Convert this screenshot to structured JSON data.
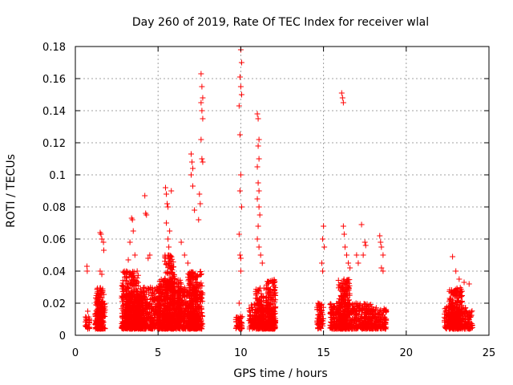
{
  "chart_data": {
    "type": "scatter",
    "title": "Day 260 of 2019, Rate Of TEC Index for receiver wlal",
    "xlabel": "GPS time / hours",
    "ylabel": "ROTI / TECUs",
    "xlim": [
      0,
      25
    ],
    "ylim": [
      0,
      0.18
    ],
    "xticks": [
      0,
      5,
      10,
      15,
      20,
      25
    ],
    "xtick_labels": [
      "0",
      "5",
      "10",
      "15",
      "20",
      "25"
    ],
    "yticks": [
      0,
      0.02,
      0.04,
      0.06,
      0.08,
      0.1,
      0.12,
      0.14,
      0.16,
      0.18
    ],
    "ytick_labels": [
      "0",
      "0.02",
      "0.04",
      "0.06",
      "0.08",
      "0.1",
      "0.12",
      "0.14",
      "0.16",
      "0.18"
    ],
    "grid": true,
    "marker": "+",
    "marker_color": "#ff0000",
    "series": [
      {
        "name": "ROTI",
        "note": "dense clusters of samples; the script generates many points inside each cluster band plus listed outliers",
        "clusters": [
          {
            "x0": 0.6,
            "x1": 0.85,
            "ymax": 0.012
          },
          {
            "x0": 1.2,
            "x1": 1.75,
            "ymax": 0.03
          },
          {
            "x0": 1.3,
            "x1": 1.8,
            "ymax": 0.022
          },
          {
            "x0": 2.8,
            "x1": 3.8,
            "ymax": 0.04
          },
          {
            "x0": 3.0,
            "x1": 4.2,
            "ymax": 0.025
          },
          {
            "x0": 3.8,
            "x1": 5.2,
            "ymax": 0.03
          },
          {
            "x0": 5.0,
            "x1": 6.4,
            "ymax": 0.035
          },
          {
            "x0": 5.4,
            "x1": 6.0,
            "ymax": 0.05
          },
          {
            "x0": 6.2,
            "x1": 7.4,
            "ymax": 0.03
          },
          {
            "x0": 6.8,
            "x1": 7.7,
            "ymax": 0.04
          },
          {
            "x0": 9.7,
            "x1": 10.1,
            "ymax": 0.012
          },
          {
            "x0": 10.5,
            "x1": 12.1,
            "ymax": 0.02
          },
          {
            "x0": 10.9,
            "x1": 11.4,
            "ymax": 0.03
          },
          {
            "x0": 11.5,
            "x1": 12.1,
            "ymax": 0.035
          },
          {
            "x0": 14.6,
            "x1": 15.0,
            "ymax": 0.02
          },
          {
            "x0": 15.4,
            "x1": 17.0,
            "ymax": 0.02
          },
          {
            "x0": 15.9,
            "x1": 16.6,
            "ymax": 0.035
          },
          {
            "x0": 17.0,
            "x1": 18.0,
            "ymax": 0.02
          },
          {
            "x0": 17.9,
            "x1": 18.8,
            "ymax": 0.018
          },
          {
            "x0": 22.3,
            "x1": 24.0,
            "ymax": 0.018
          },
          {
            "x0": 22.6,
            "x1": 23.4,
            "ymax": 0.03
          }
        ],
        "outliers": [
          [
            0.7,
            0.043
          ],
          [
            0.72,
            0.04
          ],
          [
            0.75,
            0.015
          ],
          [
            1.5,
            0.064
          ],
          [
            1.55,
            0.063
          ],
          [
            1.6,
            0.06
          ],
          [
            1.7,
            0.058
          ],
          [
            1.72,
            0.053
          ],
          [
            1.5,
            0.04
          ],
          [
            1.6,
            0.038
          ],
          [
            3.4,
            0.073
          ],
          [
            3.45,
            0.072
          ],
          [
            3.5,
            0.065
          ],
          [
            3.3,
            0.058
          ],
          [
            3.6,
            0.05
          ],
          [
            3.2,
            0.047
          ],
          [
            4.2,
            0.087
          ],
          [
            4.25,
            0.076
          ],
          [
            4.3,
            0.075
          ],
          [
            4.5,
            0.05
          ],
          [
            4.4,
            0.048
          ],
          [
            5.45,
            0.092
          ],
          [
            5.5,
            0.088
          ],
          [
            5.55,
            0.082
          ],
          [
            5.6,
            0.08
          ],
          [
            5.5,
            0.07
          ],
          [
            5.7,
            0.065
          ],
          [
            5.6,
            0.06
          ],
          [
            5.65,
            0.055
          ],
          [
            5.8,
            0.09
          ],
          [
            6.4,
            0.058
          ],
          [
            6.6,
            0.05
          ],
          [
            6.8,
            0.045
          ],
          [
            7.0,
            0.113
          ],
          [
            7.05,
            0.108
          ],
          [
            7.1,
            0.104
          ],
          [
            7.0,
            0.1
          ],
          [
            7.1,
            0.093
          ],
          [
            7.2,
            0.078
          ],
          [
            7.6,
            0.163
          ],
          [
            7.65,
            0.155
          ],
          [
            7.7,
            0.148
          ],
          [
            7.6,
            0.145
          ],
          [
            7.65,
            0.14
          ],
          [
            7.7,
            0.135
          ],
          [
            7.6,
            0.122
          ],
          [
            7.65,
            0.11
          ],
          [
            7.7,
            0.108
          ],
          [
            7.5,
            0.088
          ],
          [
            7.55,
            0.082
          ],
          [
            7.45,
            0.072
          ],
          [
            10.0,
            0.178
          ],
          [
            10.05,
            0.17
          ],
          [
            9.95,
            0.161
          ],
          [
            10.0,
            0.155
          ],
          [
            10.05,
            0.15
          ],
          [
            9.9,
            0.143
          ],
          [
            9.95,
            0.125
          ],
          [
            10.0,
            0.1
          ],
          [
            9.95,
            0.09
          ],
          [
            10.05,
            0.08
          ],
          [
            9.9,
            0.063
          ],
          [
            9.95,
            0.05
          ],
          [
            10.0,
            0.048
          ],
          [
            10.0,
            0.04
          ],
          [
            9.9,
            0.02
          ],
          [
            11.0,
            0.138
          ],
          [
            11.05,
            0.135
          ],
          [
            11.1,
            0.122
          ],
          [
            11.05,
            0.118
          ],
          [
            11.1,
            0.11
          ],
          [
            11.0,
            0.105
          ],
          [
            11.05,
            0.095
          ],
          [
            11.1,
            0.09
          ],
          [
            11.0,
            0.085
          ],
          [
            11.1,
            0.08
          ],
          [
            11.15,
            0.075
          ],
          [
            11.05,
            0.068
          ],
          [
            11.0,
            0.06
          ],
          [
            11.1,
            0.055
          ],
          [
            11.2,
            0.05
          ],
          [
            11.3,
            0.045
          ],
          [
            15.0,
            0.068
          ],
          [
            14.95,
            0.06
          ],
          [
            15.05,
            0.055
          ],
          [
            14.9,
            0.045
          ],
          [
            14.95,
            0.04
          ],
          [
            16.1,
            0.151
          ],
          [
            16.15,
            0.148
          ],
          [
            16.2,
            0.145
          ],
          [
            16.2,
            0.068
          ],
          [
            16.25,
            0.063
          ],
          [
            16.3,
            0.055
          ],
          [
            16.4,
            0.05
          ],
          [
            16.5,
            0.045
          ],
          [
            16.6,
            0.042
          ],
          [
            17.0,
            0.05
          ],
          [
            17.1,
            0.045
          ],
          [
            17.3,
            0.069
          ],
          [
            17.5,
            0.058
          ],
          [
            17.55,
            0.056
          ],
          [
            17.4,
            0.05
          ],
          [
            18.4,
            0.062
          ],
          [
            18.45,
            0.058
          ],
          [
            18.5,
            0.055
          ],
          [
            18.6,
            0.05
          ],
          [
            18.5,
            0.042
          ],
          [
            18.6,
            0.04
          ],
          [
            22.8,
            0.049
          ],
          [
            23.0,
            0.04
          ],
          [
            23.2,
            0.035
          ],
          [
            23.5,
            0.033
          ],
          [
            23.8,
            0.032
          ]
        ]
      }
    ]
  }
}
